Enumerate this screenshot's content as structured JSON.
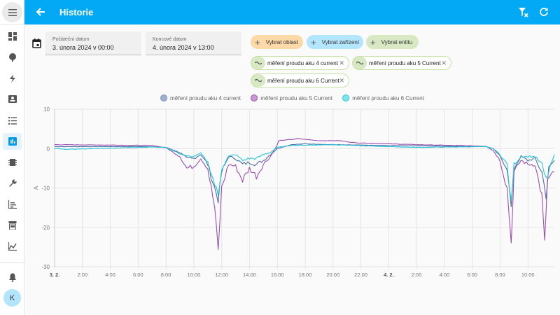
{
  "header": {
    "title": "Historie",
    "back_icon": "arrow-left-icon",
    "clear_filter_icon": "filter-remove-icon",
    "refresh_icon": "refresh-icon"
  },
  "sidebar": {
    "items": [
      "dashboard",
      "map",
      "energy",
      "logbook",
      "todo",
      "history",
      "integrations",
      "developer-tools",
      "media",
      "store",
      "statistics"
    ],
    "selected": "history",
    "notifications_icon": "bell-icon",
    "avatar": "K"
  },
  "filters": {
    "start": {
      "label": "Počáteční datum",
      "value": "3. února 2024 v 00:00"
    },
    "end": {
      "label": "Koncové datum",
      "value": "4. února 2024 v 13:00"
    },
    "pickers": [
      {
        "label": "Vybrat oblast",
        "color": "#fdd9a8"
      },
      {
        "label": "Vybrat zařízení",
        "color": "#b3e5fc"
      },
      {
        "label": "Vybrat entitu",
        "color": "#d7e8c3"
      }
    ],
    "entities": [
      "měření proudu aku 4 current",
      "měření proudu aku 5 Current",
      "měření proudu aku 6 Current"
    ]
  },
  "chart_data": {
    "type": "line",
    "ylabel": "A",
    "ylim": [
      -30,
      10
    ],
    "yticks": [
      "10",
      "0",
      "-10",
      "-20",
      "-30"
    ],
    "xlim_hours": [
      0,
      35.9
    ],
    "xticks": [
      {
        "h": 0,
        "label": "3. 2.",
        "bold": true
      },
      {
        "h": 2,
        "label": "2:00"
      },
      {
        "h": 4,
        "label": "4:00"
      },
      {
        "h": 6,
        "label": "6:00"
      },
      {
        "h": 8,
        "label": "8:00"
      },
      {
        "h": 10,
        "label": "10:00"
      },
      {
        "h": 12,
        "label": "12:00"
      },
      {
        "h": 14,
        "label": "14:00"
      },
      {
        "h": 16,
        "label": "16:00"
      },
      {
        "h": 18,
        "label": "18:00"
      },
      {
        "h": 20,
        "label": "20:00"
      },
      {
        "h": 22,
        "label": "22:00"
      },
      {
        "h": 24,
        "label": "4. 2.",
        "bold": true
      },
      {
        "h": 26,
        "label": "2:00"
      },
      {
        "h": 28,
        "label": "4:00"
      },
      {
        "h": 30,
        "label": "6:00"
      },
      {
        "h": 32,
        "label": "8:00"
      },
      {
        "h": 34,
        "label": "10:00"
      }
    ],
    "series": [
      {
        "name": "měření proudu aku 4 current",
        "color": "#4a6fa5",
        "legend_color": "#9fb0cf",
        "points": [
          [
            0,
            0.5
          ],
          [
            7,
            0.5
          ],
          [
            8,
            0.3
          ],
          [
            9,
            -1
          ],
          [
            9.5,
            -2.5
          ],
          [
            10,
            -2.5
          ],
          [
            10.5,
            -1.5
          ],
          [
            11,
            -4
          ],
          [
            11.5,
            -10
          ],
          [
            11.75,
            -13
          ],
          [
            12,
            -6
          ],
          [
            12.5,
            -2
          ],
          [
            13,
            -2.5
          ],
          [
            13.5,
            -4
          ],
          [
            14,
            -3.5
          ],
          [
            14.5,
            -4
          ],
          [
            15,
            -3
          ],
          [
            15.5,
            -1.5
          ],
          [
            16,
            0
          ],
          [
            17,
            1
          ],
          [
            18,
            1.2
          ],
          [
            20,
            1
          ],
          [
            23,
            0.8
          ],
          [
            26,
            0.7
          ],
          [
            31,
            0.5
          ],
          [
            31.5,
            0
          ],
          [
            32,
            -2
          ],
          [
            32.5,
            -5
          ],
          [
            32.8,
            -15
          ],
          [
            33,
            -5
          ],
          [
            33.5,
            -2
          ],
          [
            34,
            -3
          ],
          [
            34.5,
            -2.5
          ],
          [
            35,
            -6
          ],
          [
            35.3,
            -12
          ],
          [
            35.5,
            -5
          ],
          [
            35.9,
            -3
          ]
        ]
      },
      {
        "name": "měření proudu aku 5 Current",
        "color": "#9b4fb0",
        "legend_color": "#c79ad3",
        "points": [
          [
            0,
            1
          ],
          [
            7,
            0.8
          ],
          [
            8,
            0.2
          ],
          [
            9,
            -2
          ],
          [
            9.5,
            -5
          ],
          [
            10,
            -4.5
          ],
          [
            10.5,
            -2.5
          ],
          [
            11,
            -5
          ],
          [
            11.5,
            -15
          ],
          [
            11.75,
            -26
          ],
          [
            12,
            -10
          ],
          [
            12.5,
            -4
          ],
          [
            13,
            -4.5
          ],
          [
            13.5,
            -8
          ],
          [
            14,
            -5
          ],
          [
            14.5,
            -7
          ],
          [
            15,
            -4
          ],
          [
            15.5,
            -2
          ],
          [
            16,
            1
          ],
          [
            16.1,
            2
          ],
          [
            17.5,
            2.5
          ],
          [
            19,
            2
          ],
          [
            20.5,
            2
          ],
          [
            21.5,
            1.5
          ],
          [
            23,
            1.3
          ],
          [
            26,
            1
          ],
          [
            31,
            0.6
          ],
          [
            31.5,
            -0.5
          ],
          [
            32,
            -3
          ],
          [
            32.5,
            -10
          ],
          [
            32.8,
            -24
          ],
          [
            33,
            -6
          ],
          [
            33.5,
            -3
          ],
          [
            34,
            -4
          ],
          [
            34.5,
            -4
          ],
          [
            35,
            -12
          ],
          [
            35.2,
            -24
          ],
          [
            35.4,
            -8
          ],
          [
            35.9,
            -6
          ]
        ]
      },
      {
        "name": "měření proudu aku 6 Current",
        "color": "#26c6da",
        "legend_color": "#80e5e8",
        "points": [
          [
            0,
            0
          ],
          [
            0.8,
            -0.2
          ],
          [
            7,
            0.4
          ],
          [
            8,
            0.3
          ],
          [
            9,
            -1.3
          ],
          [
            9.5,
            -2
          ],
          [
            10,
            -2
          ],
          [
            10.5,
            -1.2
          ],
          [
            11,
            -3.5
          ],
          [
            11.5,
            -9
          ],
          [
            11.75,
            -12
          ],
          [
            12,
            -5
          ],
          [
            12.5,
            -2
          ],
          [
            13,
            -1.5
          ],
          [
            13.5,
            -3
          ],
          [
            14,
            -2.5
          ],
          [
            14.5,
            -2.5
          ],
          [
            15,
            -1.5
          ],
          [
            15.5,
            -1
          ],
          [
            16,
            0.3
          ],
          [
            17,
            0.8
          ],
          [
            20,
            1
          ],
          [
            23,
            0.6
          ],
          [
            26,
            0.3
          ],
          [
            31,
            0.5
          ],
          [
            31.5,
            0
          ],
          [
            32,
            -1.5
          ],
          [
            32.5,
            -4
          ],
          [
            32.8,
            -14
          ],
          [
            33,
            -4
          ],
          [
            33.5,
            -2
          ],
          [
            34,
            -2
          ],
          [
            34.5,
            -2
          ],
          [
            35,
            -4
          ],
          [
            35.3,
            -8
          ],
          [
            35.9,
            -1.5
          ]
        ]
      }
    ]
  }
}
